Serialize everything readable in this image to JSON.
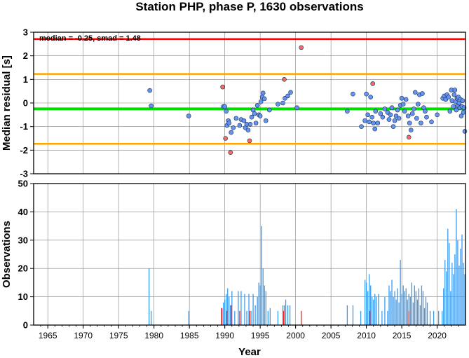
{
  "figure": {
    "title": "Station PHP, phase P, 1630 observations"
  },
  "chart_data": [
    {
      "type": "scatter",
      "ylabel": "Median residual [s]",
      "xlim": [
        1963,
        2024
      ],
      "ylim": [
        -3,
        3
      ],
      "yticks": [
        -3,
        -2,
        -1,
        0,
        1,
        2,
        3
      ],
      "grid": true,
      "annotation": "median = -0.25, smad = 1.48",
      "hlines": [
        {
          "y": 2.71,
          "color": "#ff0000"
        },
        {
          "y": 1.23,
          "color": "#ffa500"
        },
        {
          "y": -0.25,
          "color": "#00e000"
        },
        {
          "y": -1.73,
          "color": "#ffa500"
        }
      ],
      "series": [
        {
          "color": "#6495ed",
          "points": [
            [
              1979.4,
              0.53
            ],
            [
              1979.6,
              -0.12
            ],
            [
              1984.9,
              -0.55
            ],
            [
              1989.8,
              -0.15
            ],
            [
              1990.0,
              -0.15
            ],
            [
              1990.2,
              -0.35
            ],
            [
              1990.3,
              -0.95
            ],
            [
              1990.5,
              -0.75
            ],
            [
              1990.6,
              -0.85
            ],
            [
              1990.9,
              -1.25
            ],
            [
              1991.2,
              -1.05
            ],
            [
              1991.6,
              -0.65
            ],
            [
              1992.1,
              -0.95
            ],
            [
              1992.3,
              -0.7
            ],
            [
              1992.7,
              -0.75
            ],
            [
              1992.9,
              -1.05
            ],
            [
              1993.1,
              -0.9
            ],
            [
              1993.3,
              -1.15
            ],
            [
              1993.6,
              -0.9
            ],
            [
              1993.8,
              -0.6
            ],
            [
              1994.0,
              -0.3
            ],
            [
              1994.2,
              -0.45
            ],
            [
              1994.4,
              -0.85
            ],
            [
              1994.6,
              -0.1
            ],
            [
              1994.8,
              -0.5
            ],
            [
              1995.0,
              -0.55
            ],
            [
              1995.1,
              0.05
            ],
            [
              1995.3,
              0.25
            ],
            [
              1995.4,
              0.42
            ],
            [
              1995.6,
              0.18
            ],
            [
              1995.8,
              -0.75
            ],
            [
              1996.3,
              -0.3
            ],
            [
              1997.5,
              -0.05
            ],
            [
              1998.2,
              0.0
            ],
            [
              1998.5,
              0.2
            ],
            [
              1998.9,
              0.3
            ],
            [
              1999.3,
              0.45
            ],
            [
              2000.2,
              -0.2
            ],
            [
              2007.3,
              -0.35
            ],
            [
              2008.1,
              0.38
            ],
            [
              2009.3,
              -1.0
            ],
            [
              2009.8,
              -0.75
            ],
            [
              2010.0,
              0.38
            ],
            [
              2010.2,
              -0.5
            ],
            [
              2010.4,
              -0.8
            ],
            [
              2010.6,
              0.25
            ],
            [
              2010.8,
              -0.6
            ],
            [
              2011.0,
              -0.85
            ],
            [
              2011.2,
              -1.1
            ],
            [
              2011.3,
              -0.35
            ],
            [
              2011.6,
              -0.85
            ],
            [
              2012.0,
              -0.45
            ],
            [
              2012.3,
              -0.6
            ],
            [
              2012.6,
              -0.25
            ],
            [
              2013.0,
              -0.4
            ],
            [
              2013.2,
              -0.7
            ],
            [
              2013.4,
              -0.5
            ],
            [
              2013.6,
              -0.2
            ],
            [
              2013.8,
              -1.0
            ],
            [
              2014.0,
              -0.75
            ],
            [
              2014.2,
              -0.55
            ],
            [
              2014.4,
              -0.3
            ],
            [
              2014.6,
              -0.65
            ],
            [
              2014.8,
              -0.1
            ],
            [
              2015.0,
              0.2
            ],
            [
              2015.2,
              -0.05
            ],
            [
              2015.4,
              -0.35
            ],
            [
              2015.6,
              0.15
            ],
            [
              2015.9,
              -0.55
            ],
            [
              2016.1,
              -0.85
            ],
            [
              2016.3,
              -1.15
            ],
            [
              2016.5,
              -0.45
            ],
            [
              2016.7,
              -0.25
            ],
            [
              2016.9,
              0.45
            ],
            [
              2017.1,
              -0.65
            ],
            [
              2017.3,
              -0.05
            ],
            [
              2017.5,
              0.35
            ],
            [
              2017.7,
              -0.85
            ],
            [
              2017.9,
              0.4
            ],
            [
              2018.1,
              -0.2
            ],
            [
              2018.3,
              -0.35
            ],
            [
              2018.5,
              -0.6
            ],
            [
              2019.2,
              -0.8
            ],
            [
              2020.0,
              -0.5
            ],
            [
              2020.8,
              0.2
            ],
            [
              2021.0,
              0.3
            ],
            [
              2021.2,
              0.15
            ],
            [
              2021.4,
              0.35
            ],
            [
              2021.6,
              0.25
            ],
            [
              2021.8,
              -0.35
            ],
            [
              2022.0,
              0.55
            ],
            [
              2022.1,
              0.1
            ],
            [
              2022.3,
              -0.15
            ],
            [
              2022.4,
              0.35
            ],
            [
              2022.5,
              0.55
            ],
            [
              2022.6,
              0.05
            ],
            [
              2022.7,
              -0.3
            ],
            [
              2022.8,
              0.2
            ],
            [
              2022.9,
              -0.1
            ],
            [
              2023.0,
              0.25
            ],
            [
              2023.1,
              0.0
            ],
            [
              2023.2,
              -0.2
            ],
            [
              2023.3,
              0.15
            ],
            [
              2023.4,
              -0.55
            ],
            [
              2023.5,
              -0.15
            ],
            [
              2023.6,
              0.1
            ],
            [
              2023.7,
              -0.4
            ],
            [
              2023.8,
              -0.2
            ],
            [
              2023.9,
              -1.2
            ]
          ]
        },
        {
          "color": "#f46d5a",
          "points": [
            [
              1989.7,
              0.68
            ],
            [
              1990.1,
              -1.5
            ],
            [
              1990.8,
              -2.1
            ],
            [
              1993.5,
              -1.6
            ],
            [
              1998.4,
              1.0
            ],
            [
              2000.8,
              2.35
            ],
            [
              2010.9,
              0.82
            ],
            [
              2016.0,
              -1.45
            ]
          ]
        }
      ]
    },
    {
      "type": "bar",
      "xlabel": "Year",
      "ylabel": "Observations",
      "xlim": [
        1963,
        2024
      ],
      "ylim": [
        0,
        50
      ],
      "xticks": [
        1965,
        1970,
        1975,
        1980,
        1985,
        1990,
        1995,
        2000,
        2005,
        2010,
        2015,
        2020
      ],
      "yticks": [
        0,
        10,
        20,
        30,
        40,
        50
      ],
      "grid": true,
      "series": [
        {
          "color": "#3a9cf0",
          "points": [
            [
              1979.3,
              20
            ],
            [
              1979.6,
              5
            ],
            [
              1984.9,
              5
            ],
            [
              1989.5,
              6
            ],
            [
              1989.8,
              8
            ],
            [
              1990.0,
              9
            ],
            [
              1990.2,
              11
            ],
            [
              1990.4,
              13
            ],
            [
              1990.6,
              10
            ],
            [
              1990.8,
              7
            ],
            [
              1991.0,
              12
            ],
            [
              1991.4,
              5
            ],
            [
              1991.9,
              12
            ],
            [
              1992.3,
              12
            ],
            [
              1992.8,
              11
            ],
            [
              1993.1,
              5
            ],
            [
              1993.4,
              11
            ],
            [
              1993.7,
              5
            ],
            [
              1994.0,
              11
            ],
            [
              1994.3,
              7
            ],
            [
              1994.6,
              10
            ],
            [
              1994.8,
              15
            ],
            [
              1995.0,
              14
            ],
            [
              1995.2,
              35
            ],
            [
              1995.4,
              20
            ],
            [
              1995.6,
              14
            ],
            [
              1995.8,
              12
            ],
            [
              1996.1,
              5
            ],
            [
              1996.4,
              6
            ],
            [
              1997.5,
              5
            ],
            [
              1998.2,
              7
            ],
            [
              1998.4,
              7
            ],
            [
              1998.6,
              9
            ],
            [
              1998.9,
              7
            ],
            [
              1999.2,
              7
            ],
            [
              2007.3,
              7
            ],
            [
              2008.1,
              7
            ],
            [
              2009.2,
              5
            ],
            [
              2009.8,
              16
            ],
            [
              2010.0,
              15
            ],
            [
              2010.2,
              12
            ],
            [
              2010.4,
              18
            ],
            [
              2010.6,
              14
            ],
            [
              2010.8,
              10
            ],
            [
              2011.0,
              9
            ],
            [
              2011.2,
              11
            ],
            [
              2011.4,
              10
            ],
            [
              2011.7,
              11
            ],
            [
              2012.2,
              5
            ],
            [
              2012.6,
              10
            ],
            [
              2013.0,
              5
            ],
            [
              2013.2,
              14
            ],
            [
              2013.4,
              12
            ],
            [
              2013.6,
              16
            ],
            [
              2013.8,
              10
            ],
            [
              2014.0,
              12
            ],
            [
              2014.2,
              9
            ],
            [
              2014.4,
              13
            ],
            [
              2014.6,
              8
            ],
            [
              2014.8,
              23
            ],
            [
              2015.0,
              11
            ],
            [
              2015.2,
              14
            ],
            [
              2015.4,
              12
            ],
            [
              2015.6,
              13
            ],
            [
              2015.8,
              9
            ],
            [
              2016.0,
              11
            ],
            [
              2016.2,
              10
            ],
            [
              2016.4,
              15
            ],
            [
              2016.6,
              8
            ],
            [
              2016.8,
              14
            ],
            [
              2017.0,
              12
            ],
            [
              2017.2,
              9
            ],
            [
              2017.4,
              13
            ],
            [
              2017.6,
              7
            ],
            [
              2017.8,
              14
            ],
            [
              2018.0,
              12
            ],
            [
              2018.2,
              6
            ],
            [
              2018.4,
              10
            ],
            [
              2018.6,
              8
            ],
            [
              2019.0,
              5
            ],
            [
              2019.5,
              5
            ],
            [
              2020.2,
              5
            ],
            [
              2020.7,
              5
            ],
            [
              2020.9,
              13
            ],
            [
              2021.1,
              23
            ],
            [
              2021.3,
              19
            ],
            [
              2021.5,
              34
            ],
            [
              2021.7,
              29
            ],
            [
              2021.9,
              12
            ],
            [
              2022.1,
              22
            ],
            [
              2022.3,
              18
            ],
            [
              2022.5,
              25
            ],
            [
              2022.7,
              41
            ],
            [
              2022.9,
              30
            ],
            [
              2023.1,
              21
            ],
            [
              2023.3,
              27
            ],
            [
              2023.5,
              32
            ],
            [
              2023.7,
              22
            ],
            [
              2023.9,
              18
            ]
          ]
        },
        {
          "color": "#ff2020",
          "points": [
            [
              1989.6,
              6
            ],
            [
              1990.3,
              5
            ],
            [
              1990.9,
              7
            ],
            [
              1992.1,
              5
            ],
            [
              1993.5,
              5
            ],
            [
              1998.3,
              5
            ],
            [
              2000.8,
              5
            ],
            [
              2010.5,
              5
            ],
            [
              2016.0,
              5
            ]
          ]
        }
      ]
    }
  ]
}
